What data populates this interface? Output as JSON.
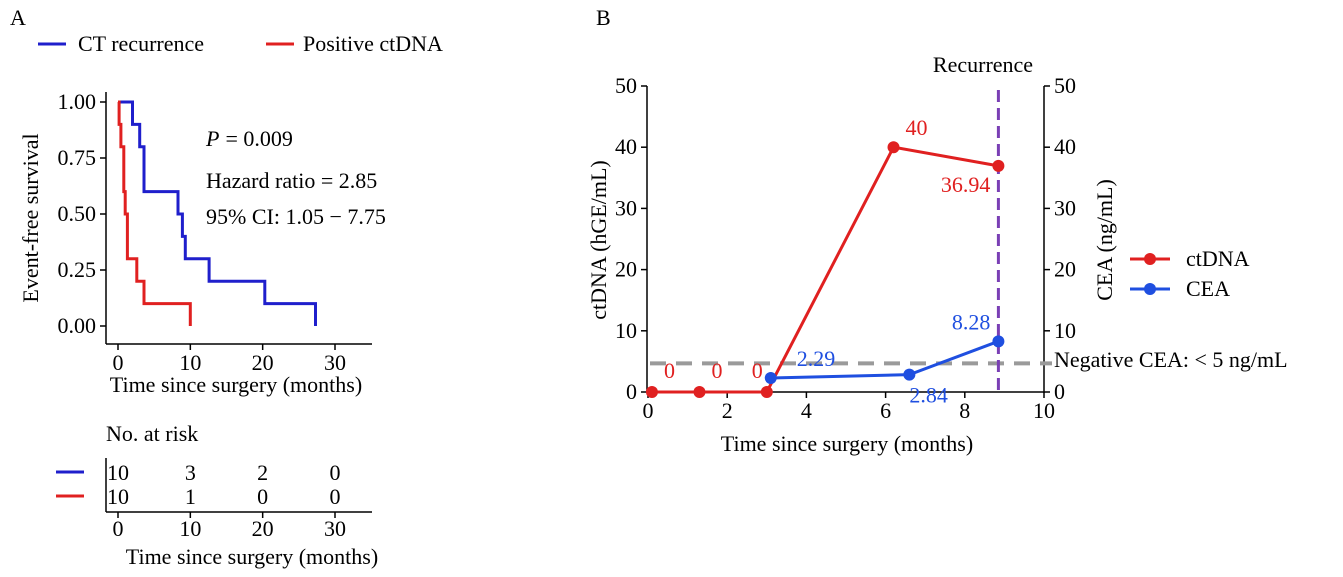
{
  "chart_data": [
    {
      "panel": "A",
      "type": "line",
      "subtype": "kaplan-meier",
      "xlabel": "Time since surgery (months)",
      "ylabel": "Event-free survival",
      "xlim": [
        -2,
        35
      ],
      "ylim": [
        -0.04,
        1.04
      ],
      "xticks": [
        "0",
        "10",
        "20",
        "30"
      ],
      "xtick_values": [
        0,
        10,
        20,
        30
      ],
      "yticks": [
        "0.00",
        "0.25",
        "0.50",
        "0.75",
        "1.00"
      ],
      "ytick_values": [
        0,
        0.25,
        0.5,
        0.75,
        1.0
      ],
      "legend": [
        "CT recurrence",
        "Positive ctDNA"
      ],
      "annotations": {
        "p_label": "P",
        "p_value": "= 0.009",
        "hazard_ratio": "Hazard ratio = 2.85",
        "ci": "95% CI: 1.05 − 7.75"
      },
      "series": [
        {
          "name": "CT recurrence",
          "color": "#1f1fcc",
          "x": [
            0,
            1,
            2,
            2,
            3,
            3,
            3.6,
            3.6,
            8.3,
            8.3,
            8.9,
            8.9,
            9.3,
            9.3,
            12.6,
            12.6,
            20.3,
            20.3,
            27.3,
            27.3
          ],
          "y": [
            1.0,
            1.0,
            1.0,
            0.9,
            0.9,
            0.8,
            0.8,
            0.6,
            0.6,
            0.5,
            0.5,
            0.4,
            0.4,
            0.3,
            0.3,
            0.2,
            0.2,
            0.1,
            0.1,
            0.0
          ]
        },
        {
          "name": "Positive ctDNA",
          "color": "#e02020",
          "x": [
            0,
            0.15,
            0.15,
            0.4,
            0.4,
            0.8,
            0.8,
            1.0,
            1.0,
            1.3,
            1.3,
            2.6,
            2.6,
            3.6,
            3.6,
            6.0,
            6.0,
            10.0,
            10.0
          ],
          "y": [
            1.0,
            1.0,
            0.9,
            0.9,
            0.8,
            0.8,
            0.6,
            0.6,
            0.5,
            0.5,
            0.3,
            0.3,
            0.2,
            0.2,
            0.1,
            0.1,
            0.1,
            0.1,
            0.0
          ]
        }
      ]
    },
    {
      "panel": "A-risk",
      "type": "table",
      "title": "No. at  risk",
      "xlabel": "Time since surgery (months)",
      "xticks": [
        "0",
        "10",
        "20",
        "30"
      ],
      "xtick_values": [
        0,
        10,
        20,
        30
      ],
      "rows": [
        {
          "name": "CT recurrence",
          "color": "#1f1fcc",
          "values": [
            "10",
            "3",
            "2",
            "0"
          ]
        },
        {
          "name": "Positive ctDNA",
          "color": "#e02020",
          "values": [
            "10",
            "1",
            "0",
            "0"
          ]
        }
      ]
    },
    {
      "panel": "B",
      "type": "line",
      "xlabel": "Time since surgery (months)",
      "ylabel": "ctDNA (hGE/mL)",
      "y2label": "CEA (ng/mL)",
      "xlim": [
        0,
        10
      ],
      "ylim": [
        0,
        50
      ],
      "y2lim": [
        0,
        50
      ],
      "xticks": [
        "0",
        "2",
        "4",
        "6",
        "8",
        "10"
      ],
      "xtick_values": [
        0,
        2,
        4,
        6,
        8,
        10
      ],
      "yticks": [
        "0",
        "10",
        "20",
        "30",
        "40",
        "50"
      ],
      "ytick_values": [
        0,
        10,
        20,
        30,
        40,
        50
      ],
      "y2ticks": [
        "0",
        "10",
        "20",
        "30",
        "40",
        "50"
      ],
      "legend": [
        "ctDNA",
        "CEA"
      ],
      "recurrence_label": "Recurrence",
      "recurrence_x": 9,
      "threshold_label": "Negative CEA: < 5 ng/mL",
      "threshold_value": 5,
      "series": [
        {
          "name": "ctDNA",
          "color": "#e02020",
          "x": [
            0.1,
            1.3,
            3.0,
            6.2,
            9.0
          ],
          "y": [
            0,
            0,
            0,
            40,
            36.94
          ],
          "labels": [
            "0",
            "0",
            "0",
            "40",
            "36.94"
          ]
        },
        {
          "name": "CEA",
          "color": "#1f4fe0",
          "x": [
            3.1,
            6.6,
            9.0
          ],
          "y": [
            2.29,
            2.84,
            8.28
          ],
          "labels": [
            "2.29",
            "2.84",
            "8.28"
          ]
        }
      ]
    }
  ],
  "panel_labels": {
    "a": "A",
    "b": "B"
  },
  "colors": {
    "blue": "#1f1fcc",
    "red": "#e02020",
    "cea_blue": "#1f4fe0",
    "purple": "#7a3fb5",
    "gray": "#9a9a9a"
  }
}
